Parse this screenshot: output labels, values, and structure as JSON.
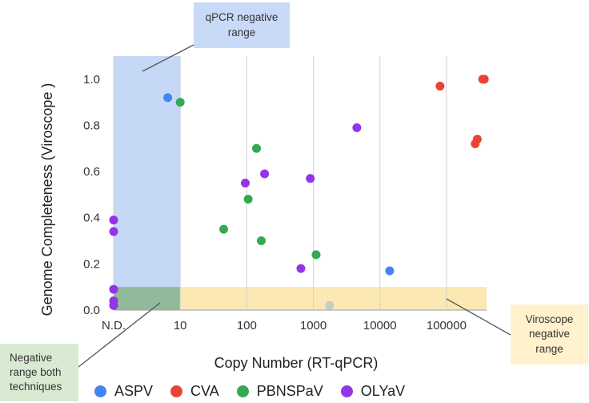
{
  "chart_data": {
    "type": "scatter",
    "x_scale": "log",
    "xlabel": "Copy Number (RT-qPCR)",
    "ylabel": "Genome Completeness (Viroscope )",
    "xlim": [
      1,
      400000
    ],
    "ylim": [
      0,
      1.1
    ],
    "x_ticks": [
      {
        "value": 1,
        "label": "N.D."
      },
      {
        "value": 10,
        "label": "10"
      },
      {
        "value": 100,
        "label": "100"
      },
      {
        "value": 1000,
        "label": "1000"
      },
      {
        "value": 10000,
        "label": "10000"
      },
      {
        "value": 100000,
        "label": "100000"
      }
    ],
    "y_ticks": [
      {
        "value": 0.0,
        "label": "0.0"
      },
      {
        "value": 0.2,
        "label": "0.2"
      },
      {
        "value": 0.4,
        "label": "0.4"
      },
      {
        "value": 0.6,
        "label": "0.6"
      },
      {
        "value": 0.8,
        "label": "0.8"
      },
      {
        "value": 1.0,
        "label": "1.0"
      }
    ],
    "grid": "vertical",
    "regions": [
      {
        "name": "qpcr-negative",
        "x_range": [
          1,
          10
        ],
        "y_range": [
          0,
          1.1
        ],
        "color": "#c5d9f6"
      },
      {
        "name": "viroscope-negative",
        "x_range": [
          10,
          400000
        ],
        "y_range": [
          0,
          0.1
        ],
        "color": "#fce8b2"
      },
      {
        "name": "both-negative",
        "x_range": [
          1,
          10
        ],
        "y_range": [
          0,
          0.1
        ],
        "color": "#93b99b"
      }
    ],
    "series": [
      {
        "name": "ASPV",
        "color": "#4285f4",
        "points": [
          [
            6.5,
            0.92
          ],
          [
            14000,
            0.17
          ]
        ]
      },
      {
        "name": "CVA",
        "color": "#ea4335",
        "points": [
          [
            80000,
            0.97
          ],
          [
            350000,
            1.0
          ],
          [
            370000,
            1.0
          ],
          [
            270000,
            0.72
          ],
          [
            290000,
            0.74
          ]
        ]
      },
      {
        "name": "PBNSPaV",
        "color": "#34a853",
        "points": [
          [
            10,
            0.9
          ],
          [
            140,
            0.7
          ],
          [
            105,
            0.48
          ],
          [
            45,
            0.35
          ],
          [
            165,
            0.3
          ],
          [
            1100,
            0.24
          ]
        ]
      },
      {
        "name": "OLYaV",
        "color": "#9334e6",
        "points": [
          [
            1,
            0.39
          ],
          [
            1,
            0.34
          ],
          [
            1,
            0.09
          ],
          [
            1,
            0.04
          ],
          [
            1,
            0.02
          ],
          [
            4500,
            0.79
          ],
          [
            185,
            0.59
          ],
          [
            95,
            0.55
          ],
          [
            900,
            0.57
          ],
          [
            650,
            0.18
          ]
        ]
      },
      {
        "name": "",
        "color": "#c8c8c8",
        "points": [
          [
            1750,
            0.02
          ]
        ]
      }
    ],
    "legend": {
      "position": "bottom"
    }
  },
  "callouts": {
    "qpcr": {
      "line1": "qPCR negative",
      "line2": "range",
      "bg": "#c9daf8"
    },
    "both": {
      "line1": "Negative",
      "line2": "range both",
      "line3": "techniques",
      "bg": "#d9ead3"
    },
    "viroscope": {
      "line1": "Viroscope",
      "line2": "negative",
      "line3": "range",
      "bg": "#fff2cc"
    }
  }
}
